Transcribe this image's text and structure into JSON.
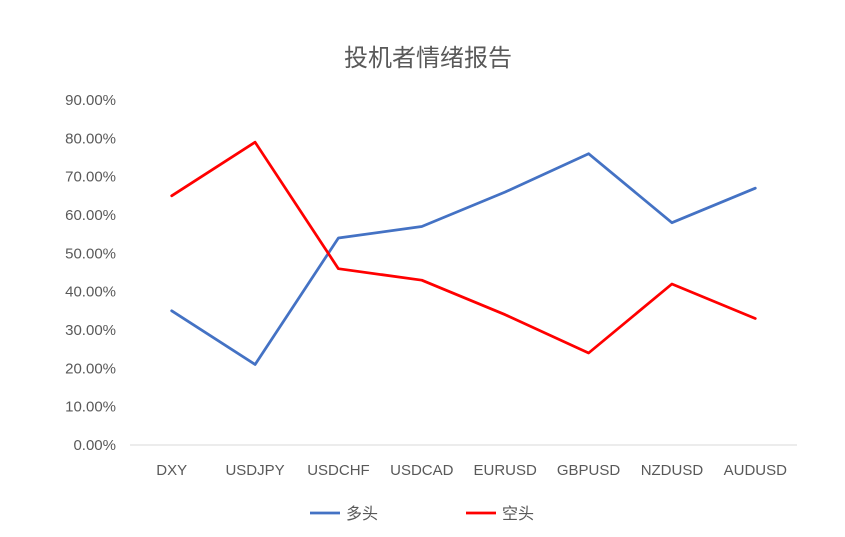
{
  "chart_data": {
    "type": "line",
    "title": "投机者情绪报告",
    "categories": [
      "DXY",
      "USDJPY",
      "USDCHF",
      "USDCAD",
      "EURUSD",
      "GBPUSD",
      "NZDUSD",
      "AUDUSD"
    ],
    "series": [
      {
        "name": "多头",
        "color": "#4472C4",
        "values": [
          35,
          21,
          54,
          57,
          66,
          76,
          58,
          67
        ]
      },
      {
        "name": "空头",
        "color": "#FF0000",
        "values": [
          65,
          79,
          46,
          43,
          34,
          24,
          42,
          33
        ]
      }
    ],
    "y_ticks": [
      "0.00%",
      "10.00%",
      "20.00%",
      "30.00%",
      "40.00%",
      "50.00%",
      "60.00%",
      "70.00%",
      "80.00%",
      "90.00%"
    ],
    "ylim": [
      0,
      90
    ],
    "grid": false,
    "legend_position": "bottom"
  }
}
